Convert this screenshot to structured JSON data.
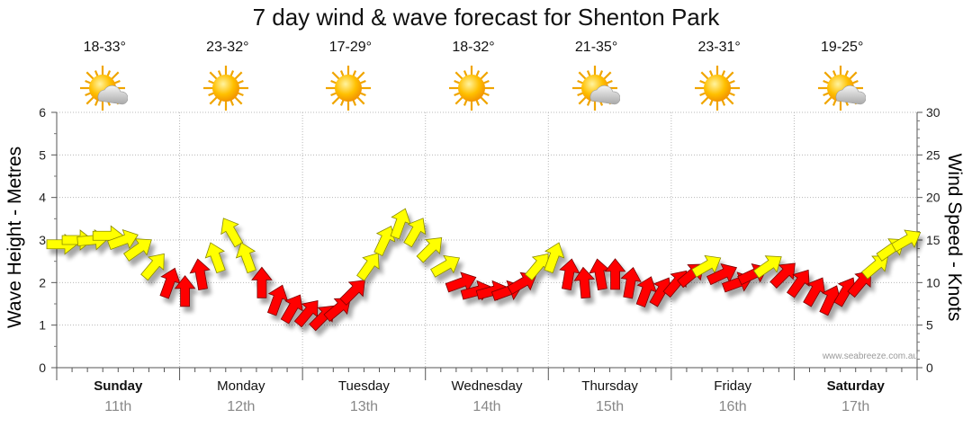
{
  "chart_data": {
    "type": "line",
    "title": "7 day wind & wave forecast for Shenton Park",
    "ylabel_left": "Wave Height - Metres",
    "ylabel_right": "Wind Speed - Knots",
    "ylim_left": [
      0,
      6
    ],
    "yticks_left": [
      "0",
      "1",
      "2",
      "3",
      "4",
      "5",
      "6"
    ],
    "ylim_right": [
      0,
      30
    ],
    "yticks_right": [
      "0",
      "5",
      "10",
      "15",
      "20",
      "25",
      "30"
    ],
    "days": [
      {
        "name": "Sunday",
        "date": "11th",
        "temp": "18-33°",
        "weather": "partly-cloudy",
        "bold": true
      },
      {
        "name": "Monday",
        "date": "12th",
        "temp": "23-32°",
        "weather": "sunny",
        "bold": false
      },
      {
        "name": "Tuesday",
        "date": "13th",
        "temp": "17-29°",
        "weather": "sunny",
        "bold": false
      },
      {
        "name": "Wednesday",
        "date": "14th",
        "temp": "18-32°",
        "weather": "sunny",
        "bold": false
      },
      {
        "name": "Thursday",
        "date": "15th",
        "temp": "21-35°",
        "weather": "partly-cloudy",
        "bold": false
      },
      {
        "name": "Friday",
        "date": "16th",
        "temp": "23-31°",
        "weather": "sunny",
        "bold": false
      },
      {
        "name": "Saturday",
        "date": "17th",
        "temp": "19-25°",
        "weather": "partly-cloudy",
        "bold": true
      }
    ],
    "watermark": "www.seabreeze.com.au",
    "wind_series": {
      "name": "Wind Speed (knots) with direction arrows",
      "x_hours": [
        0,
        3,
        6,
        9,
        12,
        15,
        18,
        21,
        24,
        27,
        30,
        33,
        36,
        39,
        42,
        45,
        48,
        51,
        54,
        57,
        60,
        63,
        66,
        69,
        72,
        75,
        78,
        81,
        84,
        87,
        90,
        93,
        96,
        99,
        102,
        105,
        108,
        111,
        114,
        117,
        120,
        123,
        126,
        129,
        132,
        135,
        138,
        141,
        144,
        147,
        150,
        153,
        156,
        159,
        162,
        165
      ],
      "speed_knots": [
        14.5,
        15,
        15,
        15.5,
        15,
        14,
        12,
        10,
        9,
        11,
        13,
        16,
        13,
        10,
        8,
        7,
        6.5,
        6,
        7,
        9,
        12,
        15,
        17,
        16,
        14,
        12,
        10,
        9,
        9,
        9,
        10,
        12,
        13,
        11,
        10,
        11,
        11,
        10,
        9,
        9,
        10,
        11,
        12,
        11,
        10,
        11,
        12,
        11,
        10,
        9,
        8,
        9,
        10,
        12,
        14,
        15
      ],
      "direction_deg": [
        270,
        270,
        265,
        270,
        250,
        235,
        220,
        200,
        180,
        170,
        160,
        150,
        160,
        180,
        200,
        210,
        220,
        225,
        230,
        225,
        215,
        205,
        200,
        210,
        225,
        240,
        250,
        255,
        255,
        250,
        240,
        220,
        200,
        190,
        175,
        170,
        180,
        190,
        200,
        210,
        220,
        230,
        240,
        245,
        250,
        245,
        235,
        225,
        215,
        210,
        205,
        210,
        220,
        230,
        235,
        240
      ],
      "strong_threshold_knots": 12
    }
  }
}
